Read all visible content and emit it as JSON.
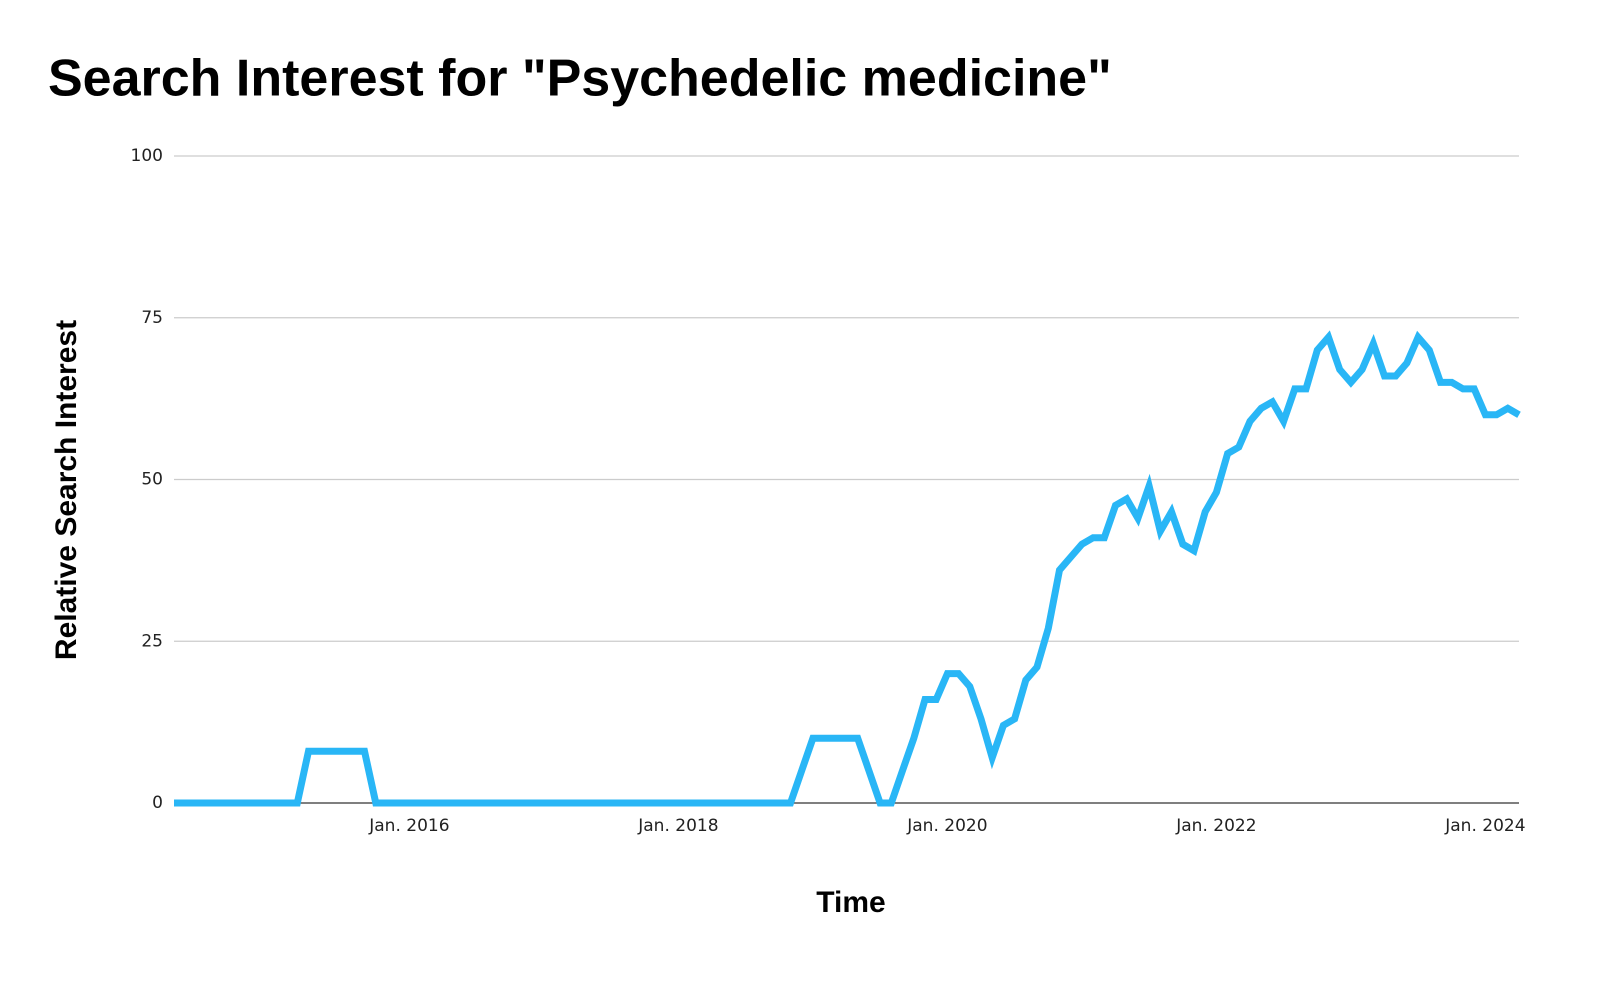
{
  "chart_data": {
    "type": "line",
    "title": "Search Interest for \"Psychedelic medicine\"",
    "x_label": "Time",
    "y_label": "Relative Search Interest",
    "x": [
      "2014-04",
      "2014-05",
      "2014-06",
      "2014-07",
      "2014-08",
      "2014-09",
      "2014-10",
      "2014-11",
      "2014-12",
      "2015-01",
      "2015-02",
      "2015-03",
      "2015-04",
      "2015-05",
      "2015-06",
      "2015-07",
      "2015-08",
      "2015-09",
      "2015-10",
      "2015-11",
      "2015-12",
      "2016-01",
      "2016-02",
      "2016-03",
      "2016-04",
      "2016-05",
      "2016-06",
      "2016-07",
      "2016-08",
      "2016-09",
      "2016-10",
      "2016-11",
      "2016-12",
      "2017-01",
      "2017-02",
      "2017-03",
      "2017-04",
      "2017-05",
      "2017-06",
      "2017-07",
      "2017-08",
      "2017-09",
      "2017-10",
      "2017-11",
      "2017-12",
      "2018-01",
      "2018-02",
      "2018-03",
      "2018-04",
      "2018-05",
      "2018-06",
      "2018-07",
      "2018-08",
      "2018-09",
      "2018-10",
      "2018-11",
      "2018-12",
      "2019-01",
      "2019-02",
      "2019-03",
      "2019-04",
      "2019-05",
      "2019-06",
      "2019-07",
      "2019-08",
      "2019-09",
      "2019-10",
      "2019-11",
      "2019-12",
      "2020-01",
      "2020-02",
      "2020-03",
      "2020-04",
      "2020-05",
      "2020-06",
      "2020-07",
      "2020-08",
      "2020-09",
      "2020-10",
      "2020-11",
      "2020-12",
      "2021-01",
      "2021-02",
      "2021-03",
      "2021-04",
      "2021-05",
      "2021-06",
      "2021-07",
      "2021-08",
      "2021-09",
      "2021-10",
      "2021-11",
      "2021-12",
      "2022-01",
      "2022-02",
      "2022-03",
      "2022-04",
      "2022-05",
      "2022-06",
      "2022-07",
      "2022-08",
      "2022-09",
      "2022-10",
      "2022-11",
      "2022-12",
      "2023-01",
      "2023-02",
      "2023-03",
      "2023-04",
      "2023-05",
      "2023-06",
      "2023-07",
      "2023-08",
      "2023-09",
      "2023-10",
      "2023-11",
      "2023-12",
      "2024-01",
      "2024-02",
      "2024-03",
      "2024-04"
    ],
    "values": [
      0,
      0,
      0,
      0,
      0,
      0,
      0,
      0,
      0,
      0,
      0,
      0,
      8,
      8,
      8,
      8,
      8,
      8,
      0,
      0,
      0,
      0,
      0,
      0,
      0,
      0,
      0,
      0,
      0,
      0,
      0,
      0,
      0,
      0,
      0,
      0,
      0,
      0,
      0,
      0,
      0,
      0,
      0,
      0,
      0,
      0,
      0,
      0,
      0,
      0,
      0,
      0,
      0,
      0,
      0,
      0,
      5,
      10,
      10,
      10,
      10,
      10,
      5,
      0,
      0,
      5,
      10,
      16,
      16,
      20,
      20,
      18,
      13,
      7,
      12,
      13,
      19,
      21,
      27,
      36,
      38,
      40,
      41,
      41,
      46,
      47,
      44,
      49,
      42,
      45,
      40,
      39,
      45,
      48,
      54,
      55,
      59,
      61,
      62,
      59,
      64,
      64,
      70,
      72,
      67,
      65,
      67,
      71,
      66,
      66,
      68,
      72,
      70,
      65,
      65,
      64,
      64,
      60,
      60,
      61,
      60
    ],
    "color": "#29b6f6",
    "xlim": [
      "2014-04",
      "2024-04"
    ],
    "xticks": [
      {
        "value": "2016-01",
        "label": "Jan. 2016"
      },
      {
        "value": "2018-01",
        "label": "Jan. 2018"
      },
      {
        "value": "2020-01",
        "label": "Jan. 2020"
      },
      {
        "value": "2022-01",
        "label": "Jan. 2022"
      },
      {
        "value": "2024-01",
        "label": "Jan. 2024"
      }
    ],
    "ylim": [
      0,
      100
    ],
    "yticks": [
      0,
      25,
      50,
      75,
      100
    ],
    "grid": true
  }
}
